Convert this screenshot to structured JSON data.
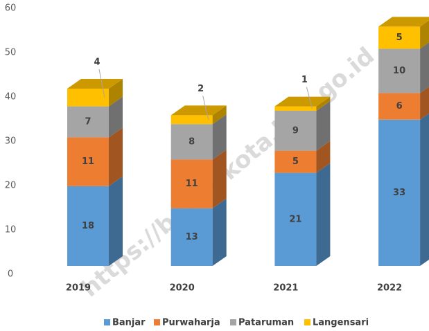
{
  "chart_data": {
    "type": "bar3d_stacked",
    "categories": [
      "2019",
      "2020",
      "2021",
      "2022"
    ],
    "series": [
      {
        "name": "Banjar",
        "color": "#5b9bd5",
        "values": [
          18,
          13,
          21,
          33
        ]
      },
      {
        "name": "Purwaharja",
        "color": "#ed7d31",
        "values": [
          11,
          11,
          5,
          6
        ]
      },
      {
        "name": "Pataruman",
        "color": "#a5a5a5",
        "values": [
          7,
          8,
          9,
          10
        ]
      },
      {
        "name": "Langensari",
        "color": "#ffc000",
        "values": [
          4,
          2,
          1,
          5
        ]
      }
    ],
    "ylim": [
      0,
      60
    ],
    "yticks": [
      0,
      10,
      20,
      30,
      40,
      50,
      60
    ],
    "grid": false,
    "legend": "bottom",
    "watermark": "https://banjarkota.bps.go.id"
  }
}
